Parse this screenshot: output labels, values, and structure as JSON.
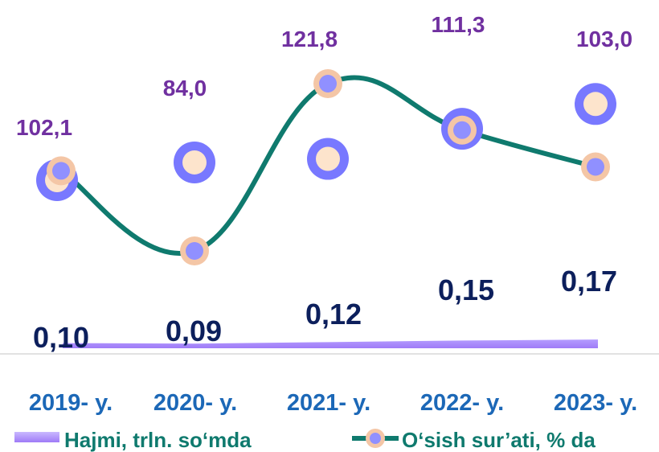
{
  "chart_data": {
    "type": "line",
    "categories": [
      "2019- y.",
      "2020- y.",
      "2021- y.",
      "2022- y.",
      "2023- y."
    ],
    "series": [
      {
        "name": "Hajmi, trln. so‘mda",
        "kind": "area",
        "values": [
          0.1,
          0.09,
          0.12,
          0.15,
          0.17
        ],
        "labels": [
          "0,10",
          "0,09",
          "0,12",
          "0,15",
          "0,17"
        ],
        "color": "#a78bfa"
      },
      {
        "name": "O‘sish sur’ati, % da",
        "kind": "line",
        "values": [
          102.1,
          84.0,
          121.8,
          111.3,
          103.0
        ],
        "labels": [
          "102,1",
          "84,0",
          "121,8",
          "111,3",
          "103,0"
        ],
        "color": "#0f7a6e"
      }
    ],
    "secondary_markers": {
      "description_free": true,
      "values": [
        100.0,
        104.0,
        104.8,
        111.6,
        117.2
      ]
    },
    "ylim_primary": [
      0,
      2.5
    ],
    "ylim_secondary": [
      70,
      135
    ],
    "legend_position": "bottom",
    "grid": false,
    "colors": {
      "category_text": "#1c68b7",
      "growth_label": "#7030a0",
      "volume_label": "#0c1f5c",
      "marker_ring": "#7878ff",
      "marker_fill": "#fde4cc",
      "marker_ring_alt": "#f4c6a6",
      "marker_fill_alt": "#9090ff",
      "legend_text": "#0f7a6e",
      "axis": "#d9d9d9"
    }
  }
}
